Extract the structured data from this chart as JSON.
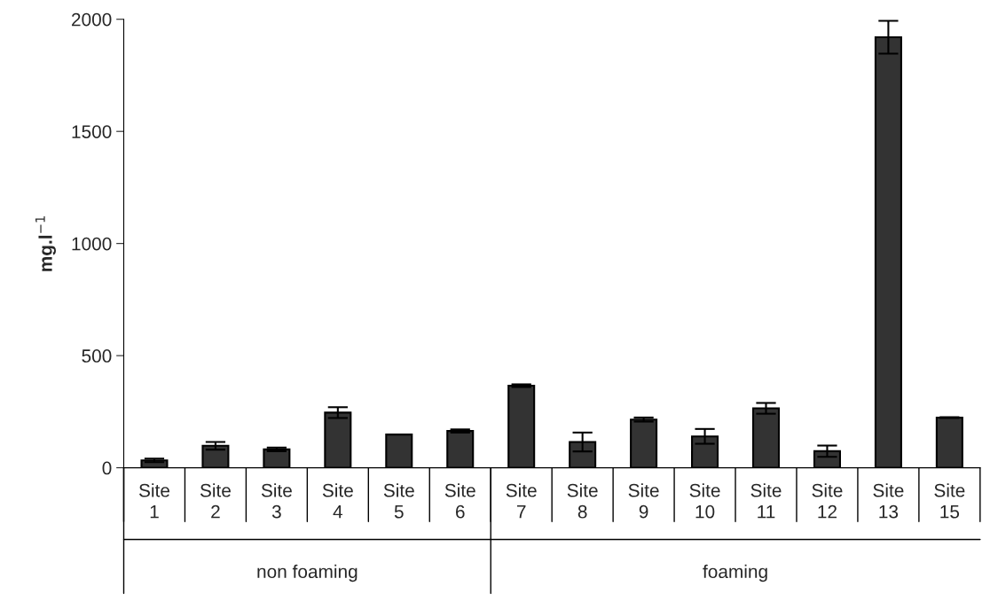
{
  "chart_data": {
    "type": "bar",
    "ylabel": "mg.l$^{−1}$",
    "categories": [
      "Site 1",
      "Site 2",
      "Site 3",
      "Site 4",
      "Site 5",
      "Site 6",
      "Site 7",
      "Site 8",
      "Site 9",
      "Site 10",
      "Site 11",
      "Site 12",
      "Site 13",
      "Site 15"
    ],
    "values": [
      33,
      98,
      82,
      246,
      148,
      164,
      366,
      115,
      215,
      140,
      265,
      74,
      1920,
      224
    ],
    "errors": [
      8,
      17,
      8,
      24,
      null,
      7,
      6,
      42,
      9,
      33,
      24,
      25,
      73,
      2
    ],
    "color": "#333333",
    "ylim": [
      0,
      2000
    ],
    "yticks": [
      0,
      500,
      1000,
      1500,
      2000
    ],
    "annotations": [
      "non foaming",
      "foaming"
    ],
    "grid": false
  }
}
